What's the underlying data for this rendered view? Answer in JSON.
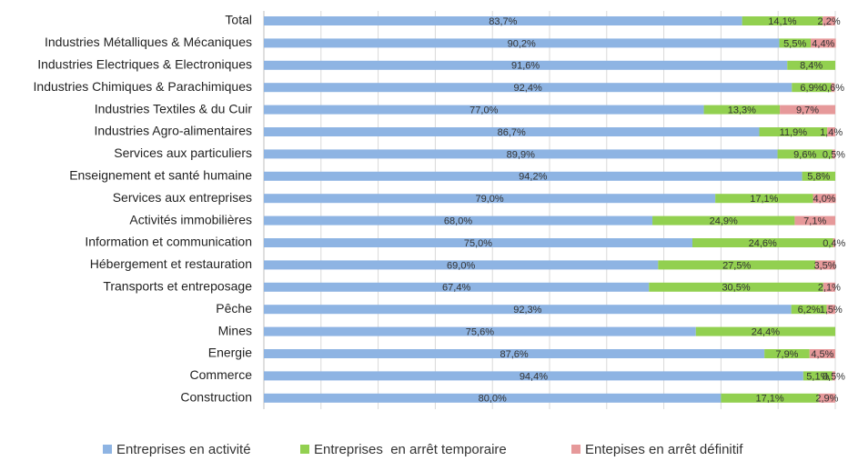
{
  "chart_data": {
    "type": "stacked-barh",
    "categories": [
      "Total",
      "Industries Métalliques & Mécaniques",
      "Industries Electriques & Electroniques",
      "Industries Chimiques & Parachimiques",
      "Industries Textiles & du Cuir",
      "Industries Agro-alimentaires",
      "Services aux particuliers",
      "Enseignement et santé humaine",
      "Services aux entreprises",
      "Activités immobilières",
      "Information et communication",
      "Hébergement et restauration",
      "Transports et entreposage",
      "Pêche",
      "Mines",
      "Energie",
      "Commerce",
      "Construction"
    ],
    "series": [
      {
        "name": "Entreprises en activité",
        "color": "#8eb4e3",
        "values": [
          83.7,
          90.2,
          91.6,
          92.4,
          77.0,
          86.7,
          89.9,
          94.2,
          79.0,
          68.0,
          75.0,
          69.0,
          67.4,
          92.3,
          75.6,
          87.6,
          94.4,
          80.0
        ],
        "value_labels": [
          "83,7%",
          "90,2%",
          "91,6%",
          "92,4%",
          "77,0%",
          "86,7%",
          "89,9%",
          "94,2%",
          "79,0%",
          "68,0%",
          "75,0%",
          "69,0%",
          "67,4%",
          "92,3%",
          "75,6%",
          "87,6%",
          "94,4%",
          "80,0%"
        ]
      },
      {
        "name": "Entreprises  en arrêt temporaire",
        "color": "#92d050",
        "values": [
          14.1,
          5.5,
          8.4,
          6.9,
          13.3,
          11.9,
          9.6,
          5.8,
          17.1,
          24.9,
          24.6,
          27.5,
          30.5,
          6.2,
          24.4,
          7.9,
          5.1,
          17.1
        ],
        "value_labels": [
          "14,1%",
          "5,5%",
          "8,4%",
          "6,9%",
          "13,3%",
          "11,9%",
          "9,6%",
          "5,8%",
          "17,1%",
          "24,9%",
          "24,6%",
          "27,5%",
          "30,5%",
          "6,2%",
          "24,4%",
          "7,9%",
          "5,1%",
          "17,1%"
        ]
      },
      {
        "name": "Entepises en arrêt définitif",
        "color": "#e6999a",
        "values": [
          2.2,
          4.4,
          null,
          0.6,
          9.7,
          1.4,
          0.5,
          null,
          4.0,
          7.1,
          0.4,
          3.5,
          2.1,
          1.5,
          null,
          4.5,
          0.5,
          2.9
        ],
        "value_labels": [
          "2,2%",
          "4,4%",
          null,
          "0,6%",
          "9,7%",
          "1,4%",
          "0,5%",
          null,
          "4,0%",
          "7,1%",
          "0,4%",
          "3,5%",
          "2,1%",
          "1,5%",
          null,
          "4,5%",
          "0,5%",
          "2,9%"
        ]
      }
    ],
    "xlim": [
      0,
      100
    ],
    "xticks": [
      0,
      10,
      20,
      30,
      40,
      50,
      60,
      70,
      80,
      90,
      100
    ],
    "grid": true
  }
}
